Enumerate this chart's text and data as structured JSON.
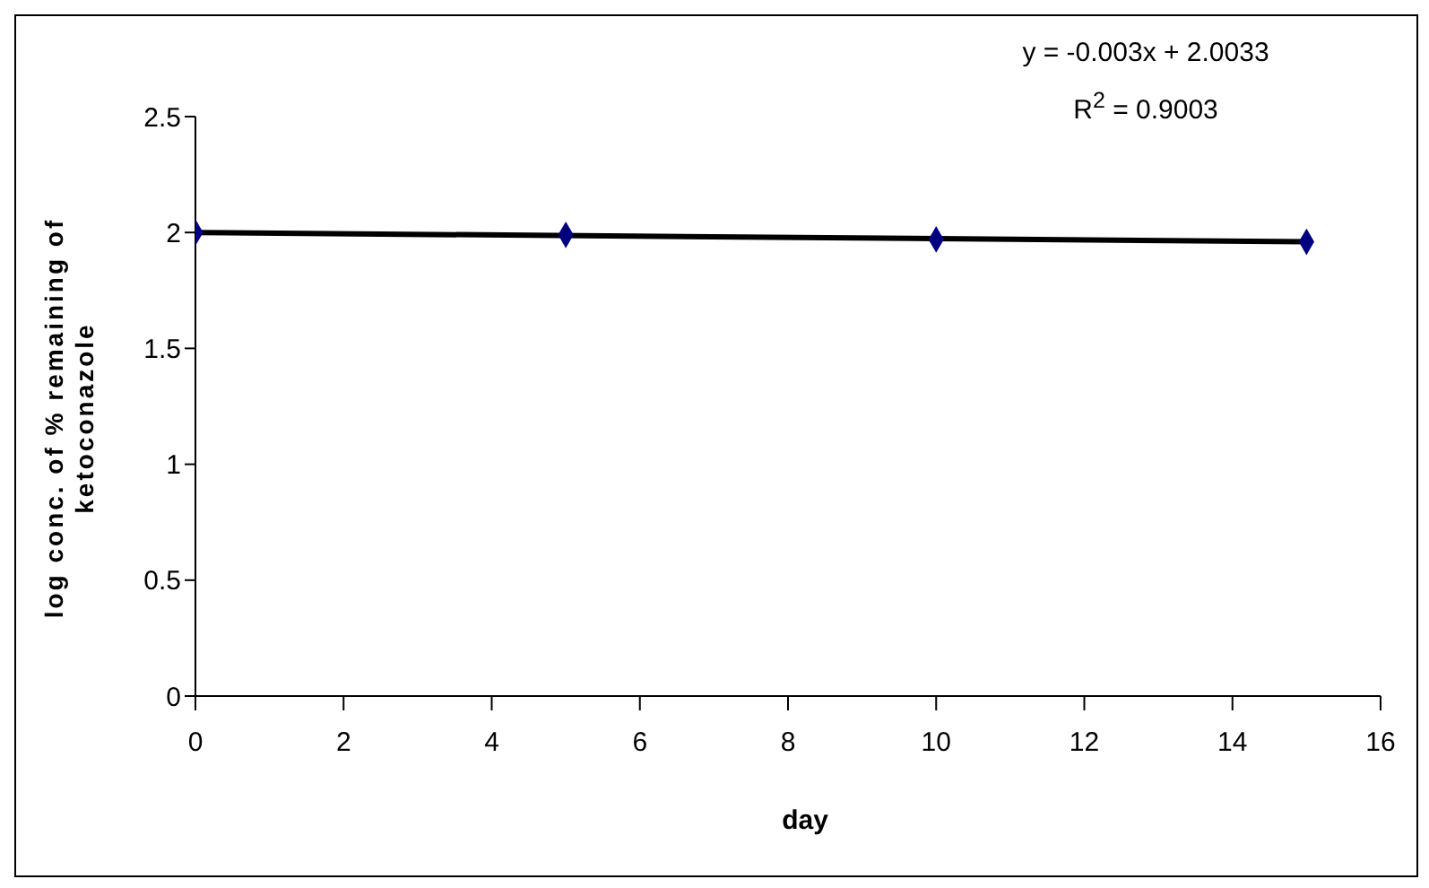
{
  "chart_data": {
    "type": "scatter",
    "xlabel": "day",
    "ylabel": "log conc. of % remaining of ketoconazole",
    "xlim": [
      0,
      16
    ],
    "xticks": [
      0,
      2,
      4,
      6,
      8,
      10,
      12,
      14,
      16
    ],
    "ylim": [
      0,
      2.5
    ],
    "yticks": [
      0,
      0.5,
      1,
      1.5,
      2,
      2.5
    ],
    "marker": "diamond",
    "grid": false,
    "legend": false,
    "series": [
      {
        "color": "#000080",
        "x": [
          0,
          5,
          10,
          15
        ],
        "values": [
          2.0,
          1.99,
          1.97,
          1.96
        ]
      },
      {
        "type": "line",
        "color": "#000000",
        "x": [
          0,
          15
        ],
        "values": [
          2.0,
          1.96
        ],
        "marker": "none"
      }
    ],
    "annotations": [
      "y = -0.003x + 2.0033",
      "R$^{2}$ = 0.9003"
    ]
  }
}
